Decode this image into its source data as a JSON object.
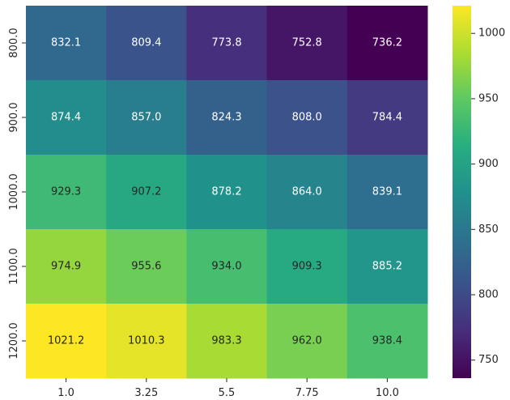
{
  "chart_data": {
    "type": "heatmap",
    "title": "",
    "xlabel": "",
    "ylabel": "",
    "x_categories": [
      "1.0",
      "3.25",
      "5.5",
      "7.75",
      "10.0"
    ],
    "y_categories": [
      "800.0",
      "900.0",
      "1000.0",
      "1100.0",
      "1200.0"
    ],
    "values": [
      [
        832.1,
        809.4,
        773.8,
        752.8,
        736.2
      ],
      [
        874.4,
        857.0,
        824.3,
        808.0,
        784.4
      ],
      [
        929.3,
        907.2,
        878.2,
        864.0,
        839.1
      ],
      [
        974.9,
        955.6,
        934.0,
        909.3,
        885.2
      ],
      [
        1021.2,
        1010.3,
        983.3,
        962.0,
        938.4
      ]
    ],
    "value_labels": [
      [
        "832.1",
        "809.4",
        "773.8",
        "752.8",
        "736.2"
      ],
      [
        "874.4",
        "857.0",
        "824.3",
        "808.0",
        "784.4"
      ],
      [
        "929.3",
        "907.2",
        "878.2",
        "864.0",
        "839.1"
      ],
      [
        "974.9",
        "955.6",
        "934.0",
        "909.3",
        "885.2"
      ],
      [
        "1021.2",
        "1010.3",
        "983.3",
        "962.0",
        "938.4"
      ]
    ],
    "colormap": "viridis",
    "color_range": [
      736.2,
      1021.2
    ],
    "colorbar_ticks": [
      750,
      800,
      850,
      900,
      950,
      1000
    ],
    "colorbar_tick_labels": [
      "750",
      "800",
      "850",
      "900",
      "950",
      "1000"
    ],
    "colorbar_position": "right",
    "grid": false
  }
}
